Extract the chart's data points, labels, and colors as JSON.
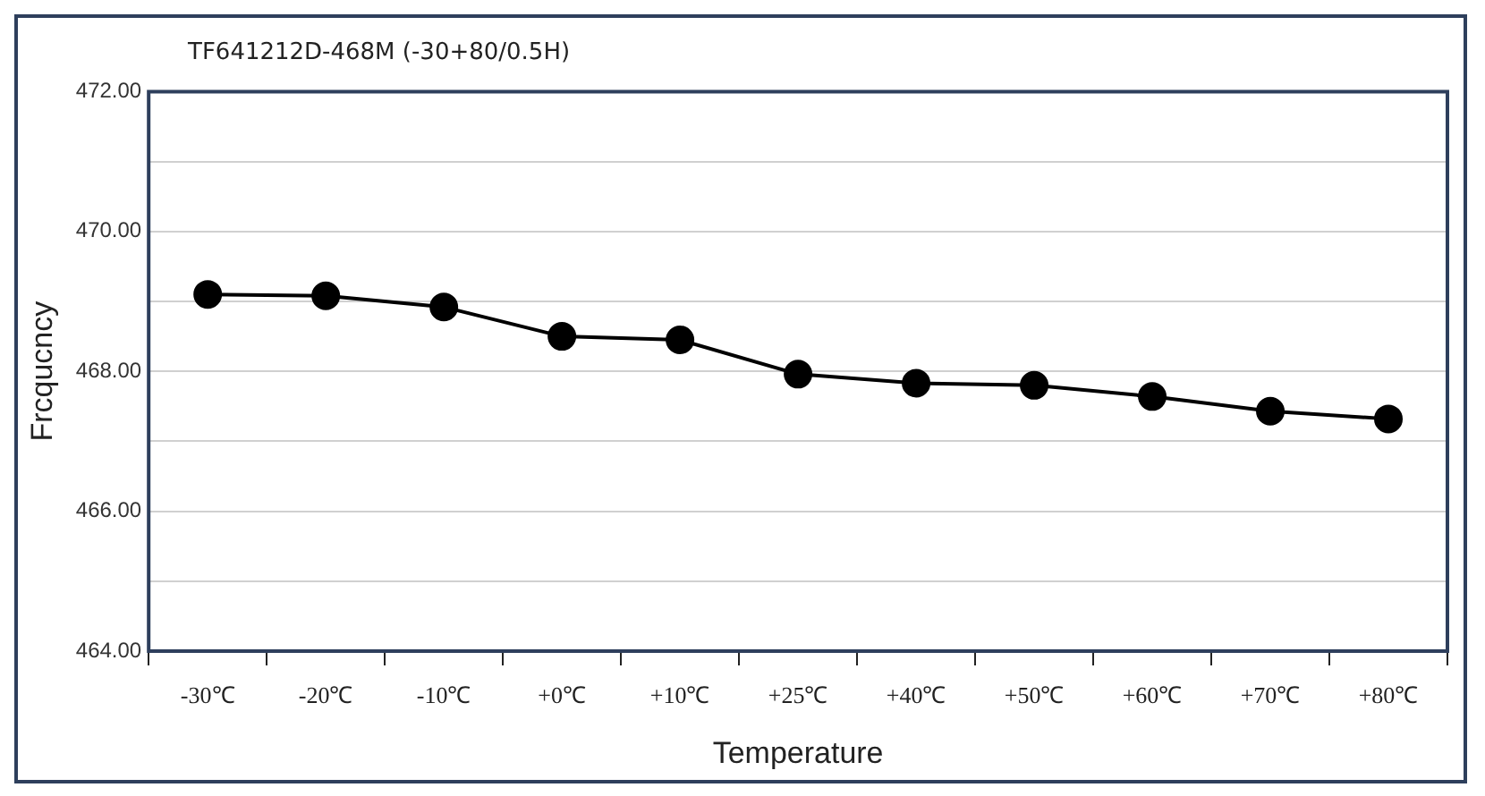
{
  "chart_data": {
    "type": "line",
    "title": "TF641212D-468M (-30+80/0.5H)",
    "xlabel": "Temperature",
    "ylabel": "Frcqucncy",
    "categories": [
      "-30℃",
      "-20℃",
      "-10℃",
      "+0℃",
      "+10℃",
      "+25℃",
      "+40℃",
      "+50℃",
      "+60℃",
      "+70℃",
      "+80℃"
    ],
    "series": [
      {
        "color": "#000000",
        "values": [
          469.1,
          469.08,
          468.92,
          468.5,
          468.45,
          467.96,
          467.83,
          467.8,
          467.64,
          467.43,
          467.32
        ]
      }
    ],
    "ylim": [
      464,
      472
    ],
    "yticks": [
      {
        "value": 464,
        "label": "464.00"
      },
      {
        "value": 465,
        "label": null
      },
      {
        "value": 466,
        "label": "466.00"
      },
      {
        "value": 467,
        "label": null
      },
      {
        "value": 468,
        "label": "468.00"
      },
      {
        "value": 469,
        "label": null
      },
      {
        "value": 470,
        "label": "470.00"
      },
      {
        "value": 471,
        "label": null
      },
      {
        "value": 472,
        "label": "472.00"
      }
    ],
    "grid": "y",
    "legend": false,
    "marker": "circle",
    "line_style": "solid"
  }
}
